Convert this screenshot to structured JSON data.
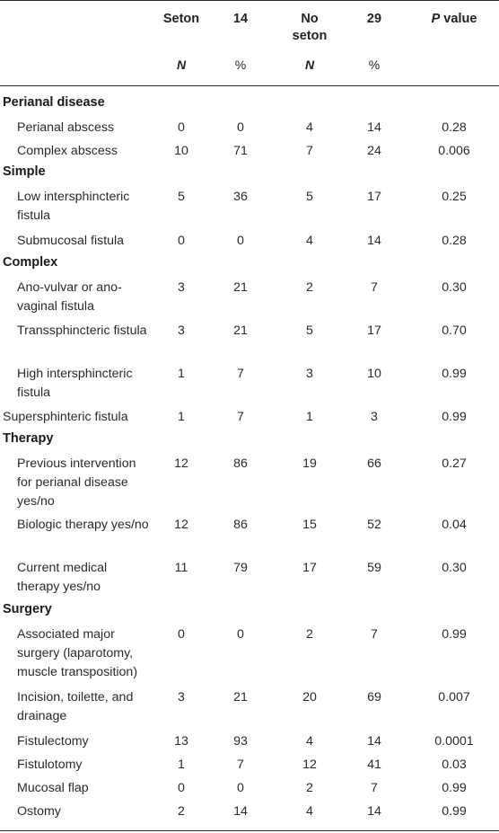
{
  "header": {
    "col1": "Seton",
    "col2": "14",
    "col3": "No seton",
    "col4": "29",
    "col5_italic": "P",
    "col5_rest": " value",
    "sub1": "N",
    "sub2": "%",
    "sub3": "N",
    "sub4": "%"
  },
  "sections": [
    {
      "title": "Perianal disease",
      "rows": [
        {
          "label": "Perianal abscess",
          "v": [
            "0",
            "0",
            "4",
            "14",
            "0.28"
          ]
        },
        {
          "label": "Complex abscess",
          "v": [
            "10",
            "71",
            "7",
            "24",
            "0.006"
          ]
        }
      ]
    },
    {
      "title": "Simple",
      "rows": [
        {
          "label": "Low intersphincteric fistula",
          "v": [
            "5",
            "36",
            "5",
            "17",
            "0.25"
          ]
        },
        {
          "label": "Submucosal fistula",
          "v": [
            "0",
            "0",
            "4",
            "14",
            "0.28"
          ]
        }
      ]
    },
    {
      "title": "Complex",
      "rows": [
        {
          "label": "Ano-vulvar or ano-vaginal fistula",
          "v": [
            "3",
            "21",
            "2",
            "7",
            "0.30"
          ]
        },
        {
          "label": "Transsphincteric fistula",
          "v": [
            "3",
            "21",
            "5",
            "17",
            "0.70"
          ]
        },
        {
          "label": "High intersphincteric fistula",
          "v": [
            "1",
            "7",
            "3",
            "10",
            "0.99"
          ]
        },
        {
          "label": "Supersphinteric fistula",
          "v": [
            "1",
            "7",
            "1",
            "3",
            "0.99"
          ]
        }
      ]
    },
    {
      "title": "Therapy",
      "rows": [
        {
          "label": "Previous intervention for perianal disease yes/no",
          "v": [
            "12",
            "86",
            "19",
            "66",
            "0.27"
          ]
        },
        {
          "label": "Biologic therapy yes/no",
          "v": [
            "12",
            "86",
            "15",
            "52",
            "0.04"
          ]
        },
        {
          "label": "Current medical therapy yes/no",
          "v": [
            "11",
            "79",
            "17",
            "59",
            "0.30"
          ]
        }
      ]
    },
    {
      "title": "Surgery",
      "rows": [
        {
          "label": "Associated major surgery (laparotomy, muscle transposition)",
          "v": [
            "0",
            "0",
            "2",
            "7",
            "0.99"
          ]
        },
        {
          "label": "Incision, toilette, and drainage",
          "v": [
            "3",
            "21",
            "20",
            "69",
            "0.007"
          ]
        },
        {
          "label": "Fistulectomy",
          "v": [
            "13",
            "93",
            "4",
            "14",
            "0.0001"
          ]
        },
        {
          "label": "Fistulotomy",
          "v": [
            "1",
            "7",
            "12",
            "41",
            "0.03"
          ]
        },
        {
          "label": "Mucosal flap",
          "v": [
            "0",
            "0",
            "2",
            "7",
            "0.99"
          ]
        },
        {
          "label": "Ostomy",
          "v": [
            "2",
            "14",
            "4",
            "14",
            "0.99"
          ]
        }
      ]
    }
  ]
}
